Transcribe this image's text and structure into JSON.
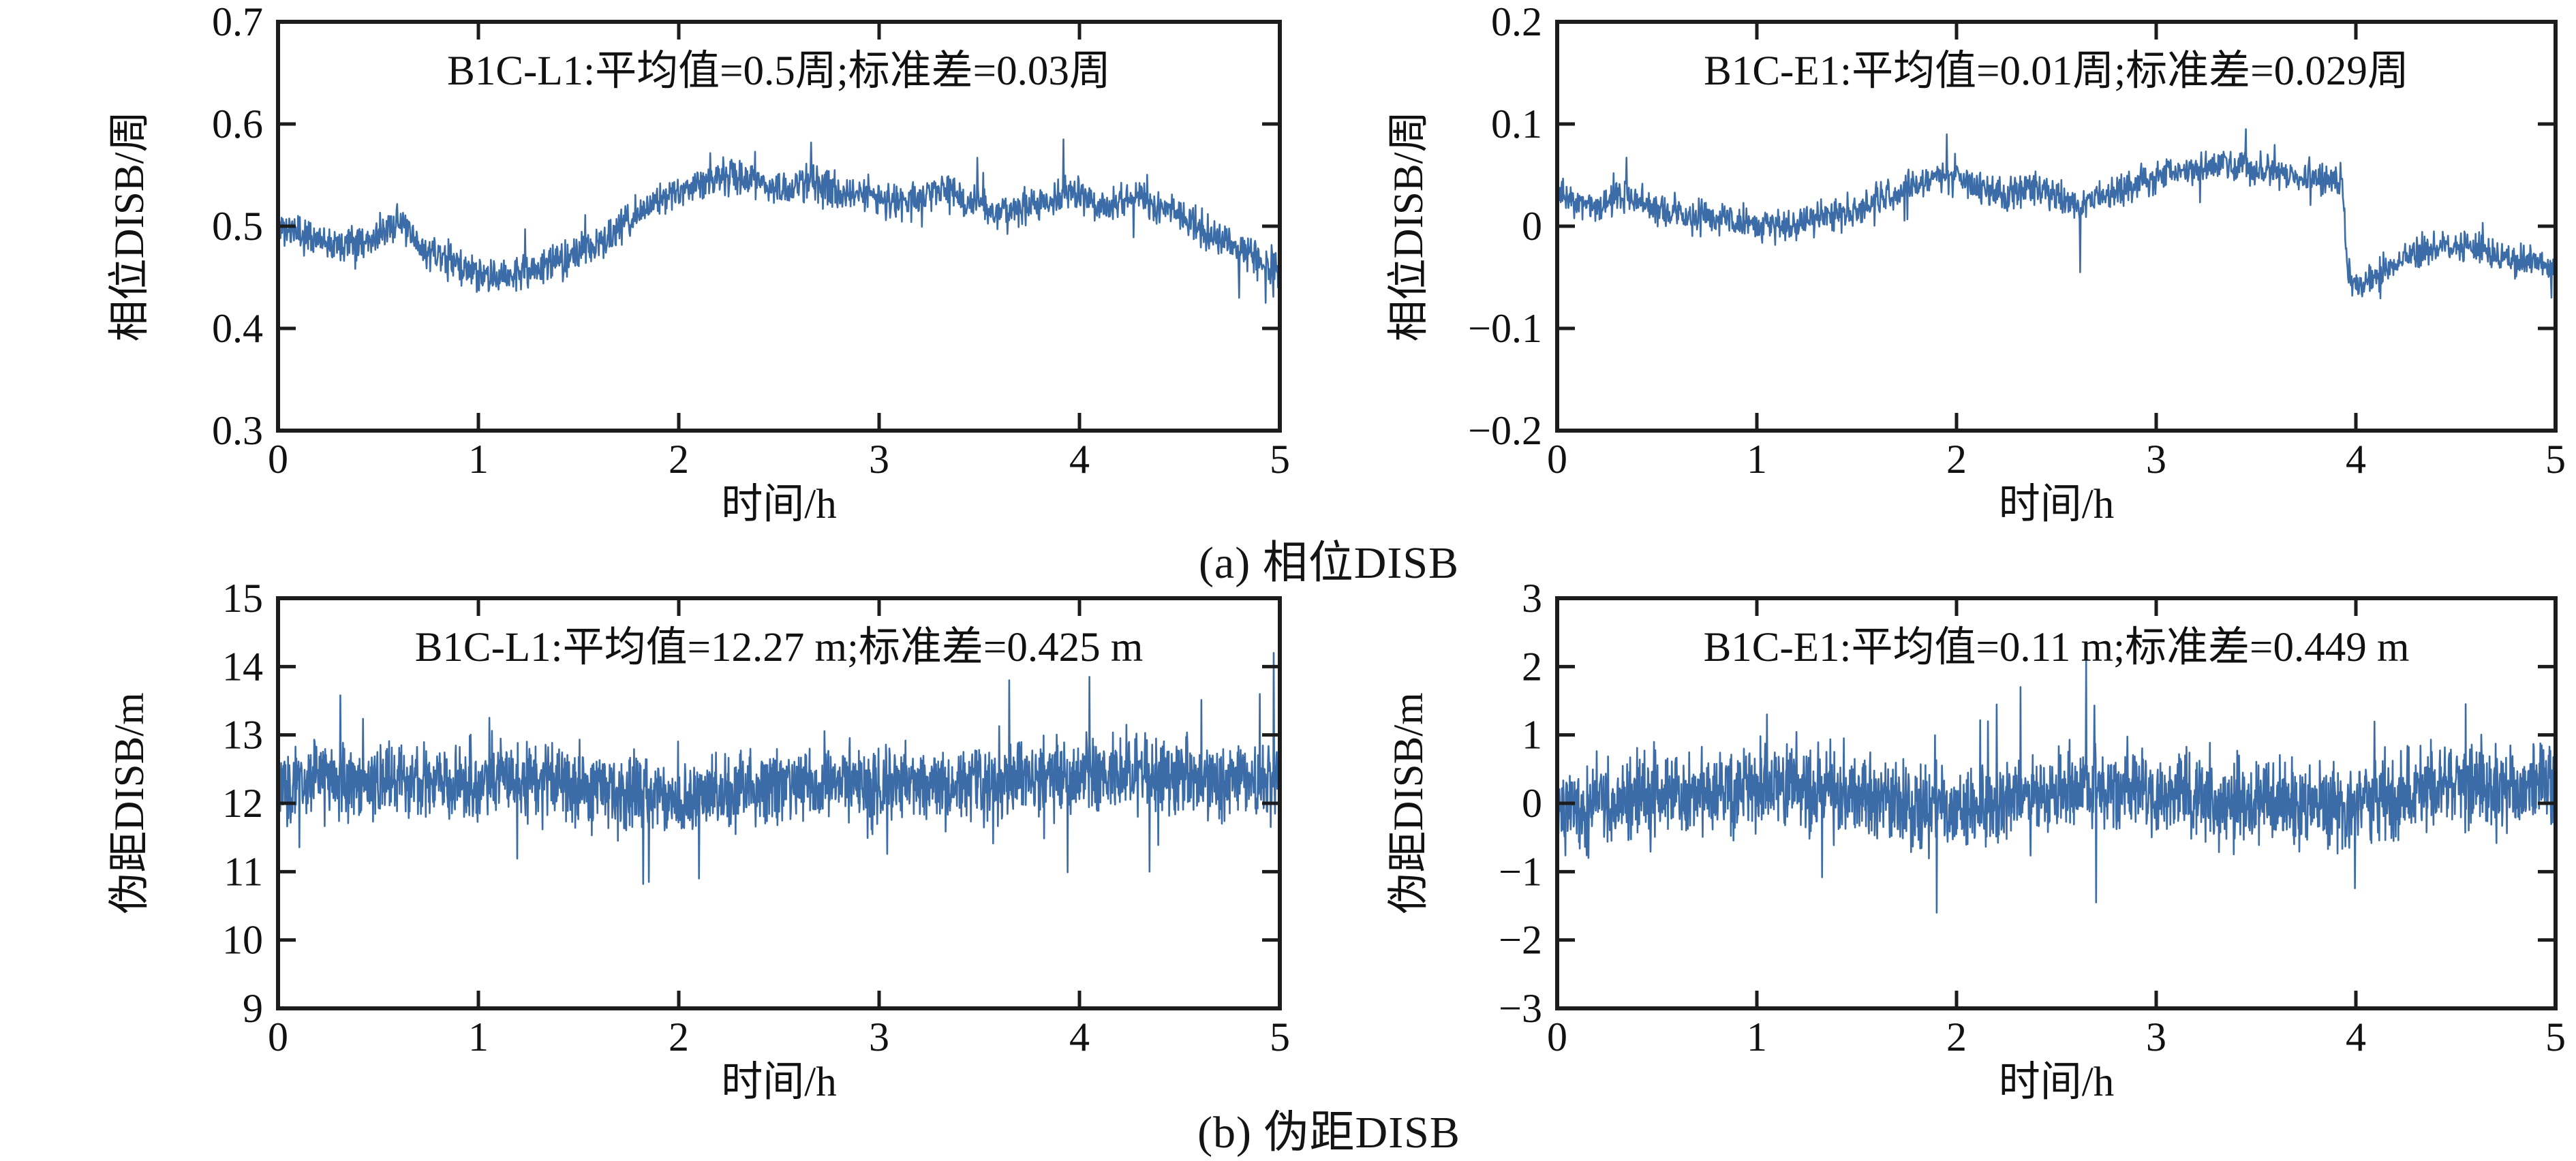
{
  "figure": {
    "captions": {
      "a": "(a) 相位DISB",
      "b": "(b) 伪距DISB"
    },
    "axis_color": "#1c1c1c",
    "background": "#ffffff"
  },
  "chart_data": {
    "type": "line",
    "layout": "2x2",
    "charts": [
      {
        "id": "phase-b1c-l1",
        "title": "B1C-L1:平均值=0.5周;标准差=0.03周",
        "xlabel": "时间/h",
        "ylabel": "相位DISB/周",
        "mean": 0.5,
        "std": 0.03,
        "xlim": [
          0,
          5
        ],
        "ylim": [
          0.3,
          0.7
        ],
        "xticks": [
          0,
          1,
          2,
          3,
          4,
          5
        ],
        "xtick_labels": [
          "0",
          "1",
          "2",
          "3",
          "4",
          "5"
        ],
        "yticks": [
          0.3,
          0.4,
          0.5,
          0.6,
          0.7
        ],
        "ytick_labels": [
          "0.3",
          "0.4",
          "0.5",
          "0.6",
          "0.7"
        ],
        "line_color": "#3C6CA8",
        "samples": 1700,
        "noise_amp": 0.013,
        "spike_prob": 0.02,
        "seed": 11,
        "trend": [
          [
            0,
            0.5
          ],
          [
            0.15,
            0.49
          ],
          [
            0.3,
            0.485
          ],
          [
            0.5,
            0.49
          ],
          [
            0.6,
            0.505
          ],
          [
            0.7,
            0.48
          ],
          [
            0.9,
            0.462
          ],
          [
            1.05,
            0.448
          ],
          [
            1.2,
            0.455
          ],
          [
            1.4,
            0.465
          ],
          [
            1.6,
            0.482
          ],
          [
            1.8,
            0.512
          ],
          [
            2.0,
            0.536
          ],
          [
            2.2,
            0.548
          ],
          [
            2.4,
            0.545
          ],
          [
            2.55,
            0.532
          ],
          [
            2.65,
            0.548
          ],
          [
            2.8,
            0.53
          ],
          [
            3.0,
            0.532
          ],
          [
            3.1,
            0.52
          ],
          [
            3.3,
            0.537
          ],
          [
            3.5,
            0.52
          ],
          [
            3.6,
            0.512
          ],
          [
            3.8,
            0.522
          ],
          [
            3.95,
            0.532
          ],
          [
            4.1,
            0.52
          ],
          [
            4.3,
            0.527
          ],
          [
            4.5,
            0.512
          ],
          [
            4.6,
            0.5
          ],
          [
            4.75,
            0.482
          ],
          [
            4.85,
            0.472
          ],
          [
            5.0,
            0.455
          ]
        ],
        "spikes": [
          [
            3.92,
            0.585
          ],
          [
            2.66,
            0.582
          ],
          [
            4.93,
            0.425
          ],
          [
            4.99,
            0.44
          ]
        ]
      },
      {
        "id": "phase-b1c-e1",
        "title": "B1C-E1:平均值=0.01周;标准差=0.029周",
        "xlabel": "时间/h",
        "ylabel": "相位DISB/周",
        "mean": 0.01,
        "std": 0.029,
        "xlim": [
          0,
          5
        ],
        "ylim": [
          -0.2,
          0.2
        ],
        "xticks": [
          0,
          1,
          2,
          3,
          4,
          5
        ],
        "xtick_labels": [
          "0",
          "1",
          "2",
          "3",
          "4",
          "5"
        ],
        "yticks": [
          -0.2,
          -0.1,
          0,
          0.1,
          0.2
        ],
        "ytick_labels": [
          "−0.2",
          "−0.1",
          "0",
          "0.1",
          "0.2"
        ],
        "line_color": "#3C6CA8",
        "samples": 1700,
        "noise_amp": 0.012,
        "spike_prob": 0.02,
        "seed": 23,
        "trend": [
          [
            0,
            0.03
          ],
          [
            0.2,
            0.02
          ],
          [
            0.35,
            0.032
          ],
          [
            0.5,
            0.015
          ],
          [
            0.7,
            0.01
          ],
          [
            0.9,
            0.005
          ],
          [
            1.1,
            0.0
          ],
          [
            1.3,
            0.01
          ],
          [
            1.5,
            0.015
          ],
          [
            1.7,
            0.032
          ],
          [
            1.9,
            0.05
          ],
          [
            2.05,
            0.045
          ],
          [
            2.2,
            0.03
          ],
          [
            2.35,
            0.038
          ],
          [
            2.5,
            0.03
          ],
          [
            2.6,
            0.018
          ],
          [
            2.75,
            0.03
          ],
          [
            2.9,
            0.04
          ],
          [
            3.05,
            0.05
          ],
          [
            3.2,
            0.055
          ],
          [
            3.35,
            0.062
          ],
          [
            3.5,
            0.055
          ],
          [
            3.65,
            0.05
          ],
          [
            3.8,
            0.045
          ],
          [
            3.93,
            0.045
          ],
          [
            3.96,
            -0.055
          ],
          [
            4.1,
            -0.05
          ],
          [
            4.25,
            -0.032
          ],
          [
            4.4,
            -0.02
          ],
          [
            4.6,
            -0.02
          ],
          [
            4.75,
            -0.032
          ],
          [
            4.9,
            -0.035
          ],
          [
            5.0,
            -0.042
          ]
        ],
        "spikes": [
          [
            1.95,
            0.09
          ],
          [
            2.62,
            -0.045
          ],
          [
            3.45,
            0.095
          ],
          [
            4.98,
            -0.07
          ]
        ]
      },
      {
        "id": "code-b1c-l1",
        "title": "B1C-L1:平均值=12.27 m;标准差=0.425 m",
        "xlabel": "时间/h",
        "ylabel": "伪距DISB/m",
        "mean": 12.27,
        "std": 0.425,
        "xlim": [
          0,
          5
        ],
        "ylim": [
          9,
          15
        ],
        "xticks": [
          0,
          1,
          2,
          3,
          4,
          5
        ],
        "xtick_labels": [
          "0",
          "1",
          "2",
          "3",
          "4",
          "5"
        ],
        "yticks": [
          9,
          10,
          11,
          12,
          13,
          14,
          15
        ],
        "ytick_labels": [
          "9",
          "10",
          "11",
          "12",
          "13",
          "14",
          "15"
        ],
        "line_color": "#3C6CA8",
        "samples": 2300,
        "noise_amp": 0.42,
        "spike_prob": 0.03,
        "seed": 37,
        "trend": [
          [
            0,
            12.3
          ],
          [
            0.3,
            12.35
          ],
          [
            0.6,
            12.3
          ],
          [
            0.9,
            12.35
          ],
          [
            1.2,
            12.4
          ],
          [
            1.5,
            12.25
          ],
          [
            1.8,
            12.1
          ],
          [
            2.0,
            12.05
          ],
          [
            2.2,
            12.15
          ],
          [
            2.5,
            12.25
          ],
          [
            2.8,
            12.3
          ],
          [
            3.1,
            12.25
          ],
          [
            3.4,
            12.3
          ],
          [
            3.7,
            12.35
          ],
          [
            4.0,
            12.4
          ],
          [
            4.2,
            12.45
          ],
          [
            4.5,
            12.35
          ],
          [
            4.7,
            12.3
          ],
          [
            5.0,
            12.4
          ]
        ],
        "spikes": [
          [
            1.85,
            10.85
          ],
          [
            2.1,
            10.9
          ],
          [
            3.65,
            13.8
          ],
          [
            4.05,
            13.85
          ],
          [
            4.35,
            11.0
          ],
          [
            4.9,
            13.6
          ],
          [
            4.97,
            14.2
          ]
        ]
      },
      {
        "id": "code-b1c-e1",
        "title": "B1C-E1:平均值=0.11 m;标准差=0.449 m",
        "xlabel": "时间/h",
        "ylabel": "伪距DISB/m",
        "mean": 0.11,
        "std": 0.449,
        "xlim": [
          0,
          5
        ],
        "ylim": [
          -3,
          3
        ],
        "xticks": [
          0,
          1,
          2,
          3,
          4,
          5
        ],
        "xtick_labels": [
          "0",
          "1",
          "2",
          "3",
          "4",
          "5"
        ],
        "yticks": [
          -3,
          -2,
          -1,
          0,
          1,
          2,
          3
        ],
        "ytick_labels": [
          "−3",
          "−2",
          "−1",
          "0",
          "1",
          "2",
          "3"
        ],
        "line_color": "#3C6CA8",
        "samples": 2300,
        "noise_amp": 0.45,
        "spike_prob": 0.03,
        "seed": 51,
        "trend": [
          [
            0,
            -0.05
          ],
          [
            0.3,
            0.05
          ],
          [
            0.6,
            0.1
          ],
          [
            0.9,
            0.2
          ],
          [
            1.2,
            0.25
          ],
          [
            1.5,
            0.1
          ],
          [
            1.8,
            -0.05
          ],
          [
            2.1,
            -0.1
          ],
          [
            2.4,
            0.1
          ],
          [
            2.7,
            0.25
          ],
          [
            3.0,
            0.1
          ],
          [
            3.3,
            0.05
          ],
          [
            3.6,
            0.0
          ],
          [
            3.9,
            -0.05
          ],
          [
            4.2,
            0.1
          ],
          [
            4.5,
            0.25
          ],
          [
            4.8,
            0.2
          ],
          [
            5.0,
            0.15
          ]
        ],
        "spikes": [
          [
            1.05,
            1.3
          ],
          [
            1.9,
            -1.6
          ],
          [
            2.32,
            1.7
          ],
          [
            2.65,
            2.1
          ],
          [
            2.7,
            -1.45
          ],
          [
            4.55,
            1.45
          ]
        ]
      }
    ]
  }
}
